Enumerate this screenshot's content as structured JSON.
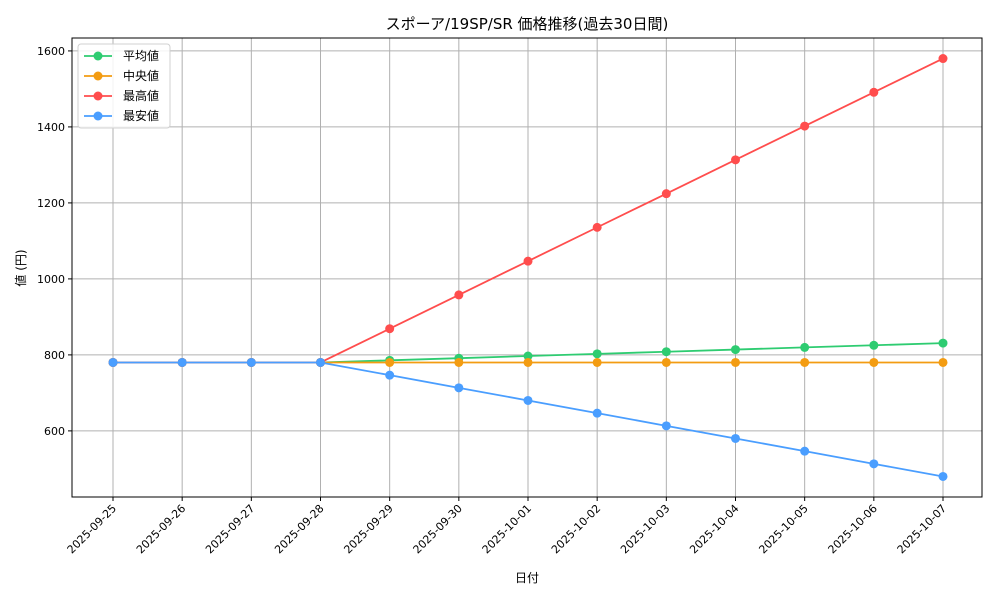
{
  "chart_data": {
    "type": "line",
    "title": "スポーア/19SP/SR 価格推移(過去30日間)",
    "xlabel": "日付",
    "ylabel": "値 (円)",
    "x": [
      "2025-09-25",
      "2025-09-26",
      "2025-09-27",
      "2025-09-28",
      "2025-09-29",
      "2025-09-30",
      "2025-10-01",
      "2025-10-02",
      "2025-10-03",
      "2025-10-04",
      "2025-10-05",
      "2025-10-06",
      "2025-10-07"
    ],
    "ylim": [
      426,
      1634
    ],
    "yticks": [
      600,
      800,
      1000,
      1200,
      1400,
      1600
    ],
    "grid": true,
    "legend_position": "top-left",
    "series": [
      {
        "name": "平均値",
        "color": "#2ecc71",
        "values": [
          780,
          780,
          780,
          780,
          785.7,
          791.3,
          797,
          802.7,
          808.3,
          814,
          819.7,
          825.3,
          831
        ]
      },
      {
        "name": "中央値",
        "color": "#f39c12",
        "values": [
          780,
          780,
          780,
          780,
          780,
          780,
          780,
          780,
          780,
          780,
          780,
          780,
          780
        ]
      },
      {
        "name": "最高値",
        "color": "#ff4d4d",
        "values": [
          780,
          780,
          780,
          780,
          868.9,
          957.8,
          1046.7,
          1135.6,
          1224.4,
          1313.3,
          1402.2,
          1491.1,
          1580
        ]
      },
      {
        "name": "最安値",
        "color": "#4a9eff",
        "values": [
          780,
          780,
          780,
          780,
          746.7,
          713.3,
          680,
          646.7,
          613.3,
          580,
          546.7,
          513.3,
          480
        ]
      }
    ]
  }
}
